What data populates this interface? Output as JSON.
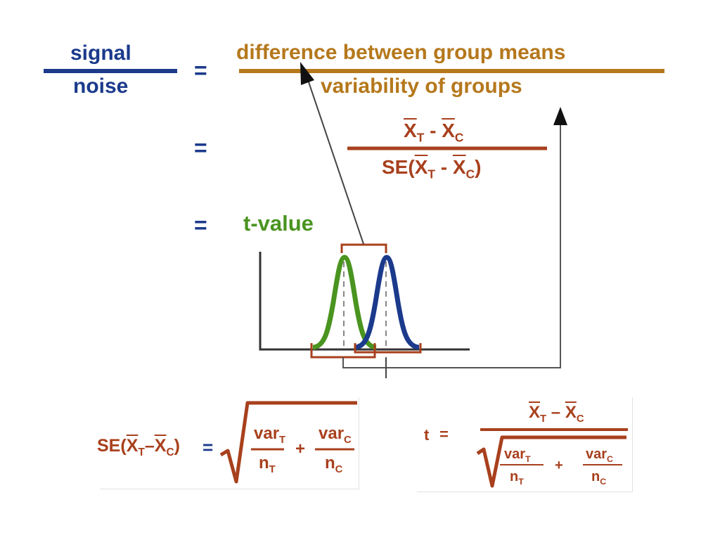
{
  "header": {
    "signal": "signal",
    "noise": "noise",
    "eq1": "=",
    "numerator": "difference between group means",
    "denominator": "variability of groups"
  },
  "row2": {
    "eq": "=",
    "num_x": "X",
    "num_t": "T",
    "num_minus": "-",
    "num_x2": "X",
    "num_c": "C",
    "den_se": "SE(",
    "den_x": "X",
    "den_t": "T",
    "den_minus": "-",
    "den_x2": "X",
    "den_c": "C",
    "den_close": ")"
  },
  "row3": {
    "eq": "=",
    "tvalue": "t-value"
  },
  "se_formula": {
    "se": "SE(",
    "x": "X",
    "t": "T",
    "minus": "–",
    "x2": "X",
    "c": "C",
    "close": ")",
    "eq": "=",
    "varT": "var",
    "varT_sub": "T",
    "nT": "n",
    "nT_sub": "T",
    "plus": "+",
    "varC": "var",
    "varC_sub": "C",
    "nC": "n",
    "nC_sub": "C"
  },
  "t_formula": {
    "t": "t",
    "eq": "=",
    "x": "X",
    "xt": "T",
    "minus": "–",
    "x2": "X",
    "xc": "C",
    "varT": "var",
    "varT_sub": "T",
    "nT": "n",
    "nT_sub": "T",
    "plus": "+",
    "varC": "var",
    "varC_sub": "C",
    "nC": "n",
    "nC_sub": "C"
  },
  "colors": {
    "blue": "#1b3a8c",
    "gold": "#b5781c",
    "rust": "#a8401d",
    "green": "#4a9420"
  }
}
